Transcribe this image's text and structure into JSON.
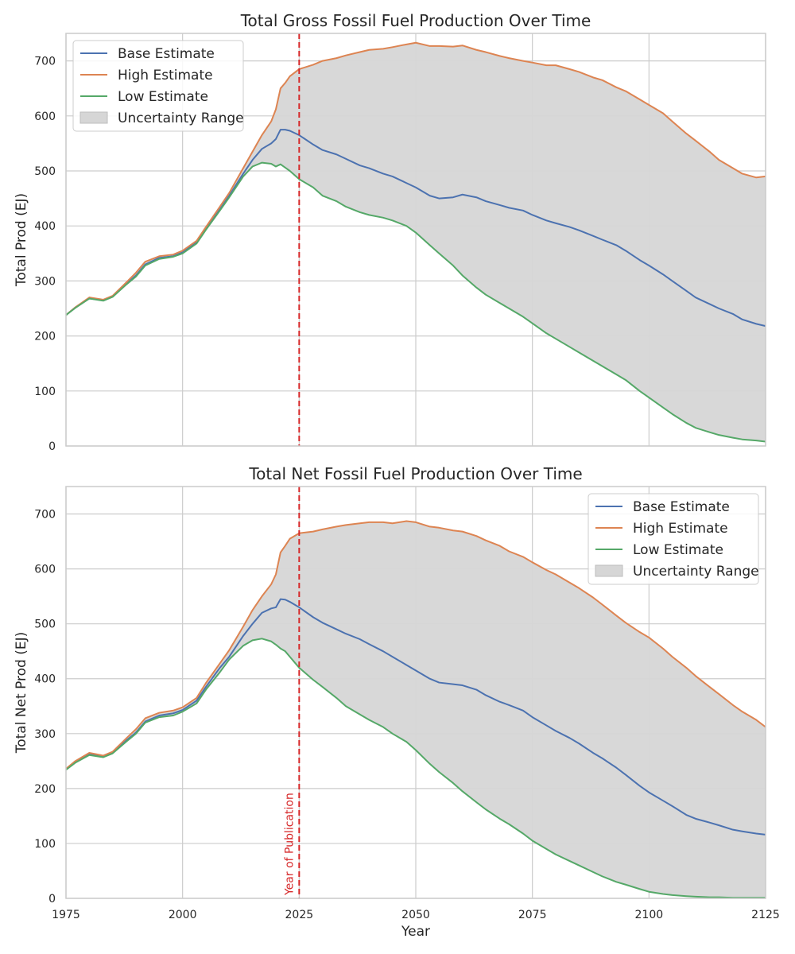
{
  "chart_data": [
    {
      "type": "line",
      "title": "Total Gross Fossil Fuel Production Over Time",
      "xlabel": "",
      "ylabel": "Total Prod (EJ)",
      "xlim": [
        1975,
        2125
      ],
      "ylim": [
        0,
        750
      ],
      "xticks": [
        1975,
        2000,
        2025,
        2050,
        2075,
        2100,
        2125
      ],
      "yticks": [
        0,
        100,
        200,
        300,
        400,
        500,
        600,
        700
      ],
      "grid": true,
      "legend_position": "top-left",
      "vline": {
        "x": 2025,
        "color": "#d62728"
      },
      "band_label": "Uncertainty Range",
      "band_color": "#d6d6d6",
      "x": [
        1975,
        1977,
        1980,
        1983,
        1985,
        1988,
        1990,
        1992,
        1995,
        1998,
        2000,
        2003,
        2005,
        2008,
        2010,
        2013,
        2015,
        2017,
        2019,
        2020,
        2021,
        2022,
        2023,
        2025,
        2028,
        2030,
        2033,
        2035,
        2038,
        2040,
        2043,
        2045,
        2048,
        2050,
        2053,
        2055,
        2058,
        2060,
        2063,
        2065,
        2068,
        2070,
        2073,
        2075,
        2078,
        2080,
        2083,
        2085,
        2088,
        2090,
        2093,
        2095,
        2098,
        2100,
        2103,
        2105,
        2108,
        2110,
        2113,
        2115,
        2118,
        2120,
        2123,
        2125
      ],
      "series": [
        {
          "name": "Base Estimate",
          "color": "#4c72b0",
          "values": [
            238,
            252,
            268,
            265,
            272,
            295,
            310,
            330,
            342,
            345,
            352,
            370,
            395,
            430,
            455,
            495,
            520,
            540,
            550,
            558,
            575,
            575,
            573,
            565,
            548,
            538,
            530,
            522,
            510,
            505,
            495,
            490,
            478,
            470,
            455,
            450,
            452,
            457,
            452,
            445,
            438,
            433,
            428,
            420,
            410,
            405,
            398,
            392,
            382,
            375,
            365,
            355,
            338,
            328,
            312,
            300,
            282,
            270,
            258,
            250,
            240,
            230,
            222,
            218
          ]
        },
        {
          "name": "High Estimate",
          "color": "#dd8452",
          "values": [
            238,
            252,
            270,
            266,
            273,
            298,
            315,
            335,
            345,
            348,
            355,
            373,
            398,
            435,
            460,
            505,
            535,
            565,
            590,
            612,
            650,
            660,
            672,
            685,
            693,
            700,
            705,
            710,
            716,
            720,
            722,
            725,
            730,
            733,
            727,
            727,
            726,
            728,
            720,
            716,
            709,
            705,
            700,
            697,
            692,
            692,
            685,
            680,
            670,
            665,
            652,
            645,
            630,
            620,
            605,
            590,
            568,
            555,
            535,
            520,
            505,
            495,
            488,
            490
          ]
        },
        {
          "name": "Low Estimate",
          "color": "#55a868",
          "values": [
            238,
            251,
            268,
            264,
            271,
            294,
            308,
            328,
            340,
            344,
            350,
            368,
            393,
            428,
            452,
            490,
            508,
            515,
            513,
            508,
            512,
            506,
            500,
            485,
            470,
            455,
            445,
            435,
            425,
            420,
            415,
            410,
            400,
            388,
            365,
            350,
            328,
            310,
            288,
            275,
            260,
            250,
            235,
            223,
            205,
            195,
            180,
            170,
            155,
            145,
            130,
            120,
            100,
            88,
            70,
            58,
            42,
            33,
            25,
            20,
            15,
            12,
            10,
            8
          ]
        }
      ]
    },
    {
      "type": "line",
      "title": "Total Net Fossil Fuel Production Over Time",
      "xlabel": "Year",
      "ylabel": "Total Net Prod (EJ)",
      "xlim": [
        1975,
        2125
      ],
      "ylim": [
        0,
        750
      ],
      "xticks": [
        1975,
        2000,
        2025,
        2050,
        2075,
        2100,
        2125
      ],
      "yticks": [
        0,
        100,
        200,
        300,
        400,
        500,
        600,
        700
      ],
      "grid": true,
      "legend_position": "top-right",
      "vline": {
        "x": 2025,
        "color": "#d62728",
        "label": "Year of Publication"
      },
      "band_label": "Uncertainty Range",
      "band_color": "#d6d6d6",
      "x": [
        1975,
        1977,
        1980,
        1983,
        1985,
        1988,
        1990,
        1992,
        1995,
        1998,
        2000,
        2003,
        2005,
        2008,
        2010,
        2013,
        2015,
        2017,
        2019,
        2020,
        2021,
        2022,
        2023,
        2025,
        2028,
        2030,
        2033,
        2035,
        2038,
        2040,
        2043,
        2045,
        2048,
        2050,
        2053,
        2055,
        2058,
        2060,
        2063,
        2065,
        2068,
        2070,
        2073,
        2075,
        2078,
        2080,
        2083,
        2085,
        2088,
        2090,
        2093,
        2095,
        2098,
        2100,
        2103,
        2105,
        2108,
        2110,
        2113,
        2115,
        2118,
        2120,
        2123,
        2125
      ],
      "series": [
        {
          "name": "Base Estimate",
          "color": "#4c72b0",
          "values": [
            236,
            248,
            262,
            258,
            265,
            288,
            302,
            322,
            333,
            337,
            343,
            360,
            385,
            420,
            440,
            478,
            500,
            520,
            528,
            530,
            545,
            544,
            540,
            530,
            512,
            502,
            490,
            482,
            472,
            463,
            450,
            440,
            425,
            415,
            400,
            393,
            390,
            388,
            380,
            370,
            358,
            352,
            342,
            330,
            315,
            305,
            292,
            282,
            265,
            255,
            238,
            225,
            205,
            193,
            178,
            168,
            152,
            145,
            138,
            133,
            125,
            122,
            118,
            116
          ]
        },
        {
          "name": "High Estimate",
          "color": "#dd8452",
          "values": [
            236,
            250,
            265,
            260,
            267,
            292,
            308,
            328,
            338,
            342,
            348,
            365,
            392,
            428,
            452,
            495,
            525,
            550,
            572,
            590,
            630,
            642,
            655,
            665,
            668,
            672,
            677,
            680,
            683,
            685,
            685,
            683,
            687,
            685,
            677,
            675,
            670,
            668,
            660,
            652,
            642,
            632,
            622,
            612,
            598,
            590,
            575,
            565,
            548,
            535,
            515,
            502,
            485,
            475,
            455,
            440,
            420,
            405,
            385,
            372,
            352,
            340,
            325,
            312
          ]
        },
        {
          "name": "Low Estimate",
          "color": "#55a868",
          "values": [
            234,
            247,
            261,
            257,
            264,
            286,
            300,
            320,
            330,
            333,
            340,
            355,
            380,
            412,
            435,
            460,
            470,
            473,
            468,
            462,
            455,
            450,
            440,
            420,
            398,
            385,
            365,
            350,
            335,
            325,
            312,
            300,
            285,
            270,
            245,
            230,
            210,
            195,
            175,
            162,
            145,
            135,
            118,
            105,
            90,
            80,
            68,
            60,
            48,
            40,
            30,
            25,
            17,
            12,
            8,
            6,
            4,
            3,
            2,
            2,
            1,
            1,
            1,
            1
          ]
        }
      ]
    }
  ]
}
